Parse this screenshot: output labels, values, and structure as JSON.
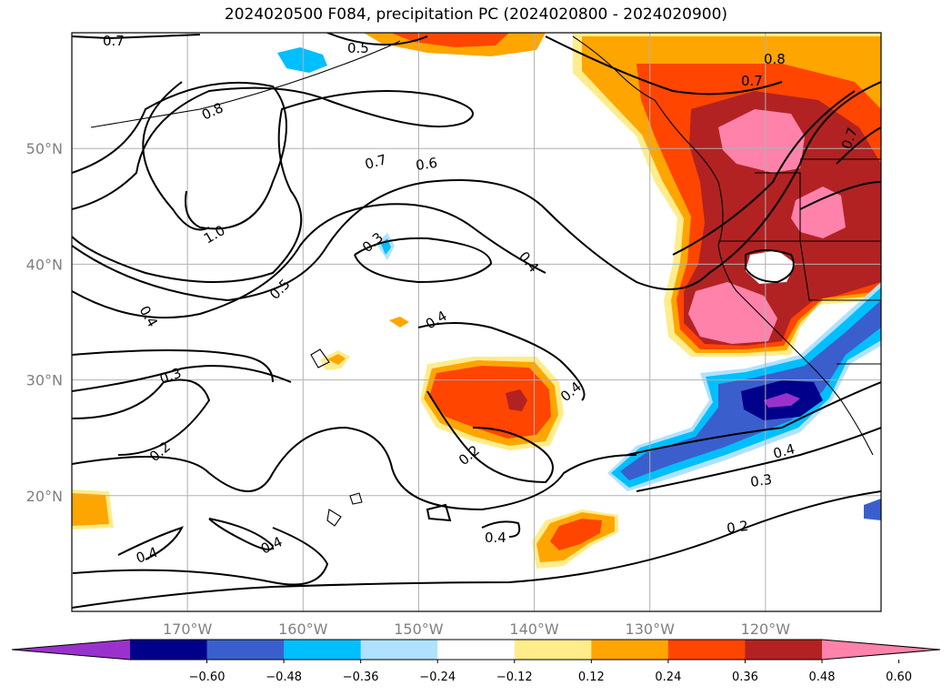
{
  "title": "2024020500 F084, precipitation PC (2024020800 - 2024020900)",
  "map": {
    "projection": "PlateCarree",
    "lon_range": [
      -180,
      -110
    ],
    "lat_range": [
      10,
      60
    ],
    "lon_ticks": [
      {
        "value": -170,
        "label": "170°W"
      },
      {
        "value": -160,
        "label": "160°W"
      },
      {
        "value": -150,
        "label": "150°W"
      },
      {
        "value": -140,
        "label": "140°W"
      },
      {
        "value": -130,
        "label": "130°W"
      },
      {
        "value": -120,
        "label": "120°W"
      }
    ],
    "lat_ticks": [
      {
        "value": 20,
        "label": "20°N"
      },
      {
        "value": 30,
        "label": "30°N"
      },
      {
        "value": 40,
        "label": "40°N"
      },
      {
        "value": 50,
        "label": "50°N"
      }
    ],
    "grid": true
  },
  "colorbar": {
    "extend": "both",
    "boundaries": [
      -0.72,
      -0.6,
      -0.48,
      -0.36,
      -0.24,
      -0.12,
      0.12,
      0.24,
      0.36,
      0.48,
      0.6,
      0.72
    ],
    "colors": [
      "#9932cc",
      "#00008b",
      "#3a5fcd",
      "#00bfff",
      "#b0e2ff",
      "#ffffff",
      "#ffec8b",
      "#ffa500",
      "#ff4500",
      "#b22222",
      "#ff82ab"
    ],
    "tick_labels": [
      "−0.60",
      "−0.48",
      "−0.36",
      "−0.24",
      "−0.12",
      "0.12",
      "0.24",
      "0.36",
      "0.48",
      "0.60"
    ]
  },
  "contour_labels": [
    "0.7",
    "0.5",
    "0.8",
    "0.8",
    "0.7",
    "0.7",
    "0.6",
    "1.0",
    "0.5",
    "0.3",
    "0.4",
    "0.4",
    "0.4",
    "0.3",
    "0.2",
    "0.2",
    "0.4",
    "0.4",
    "0.4",
    "0.4",
    "0.4",
    "0.3",
    "0.2"
  ]
}
